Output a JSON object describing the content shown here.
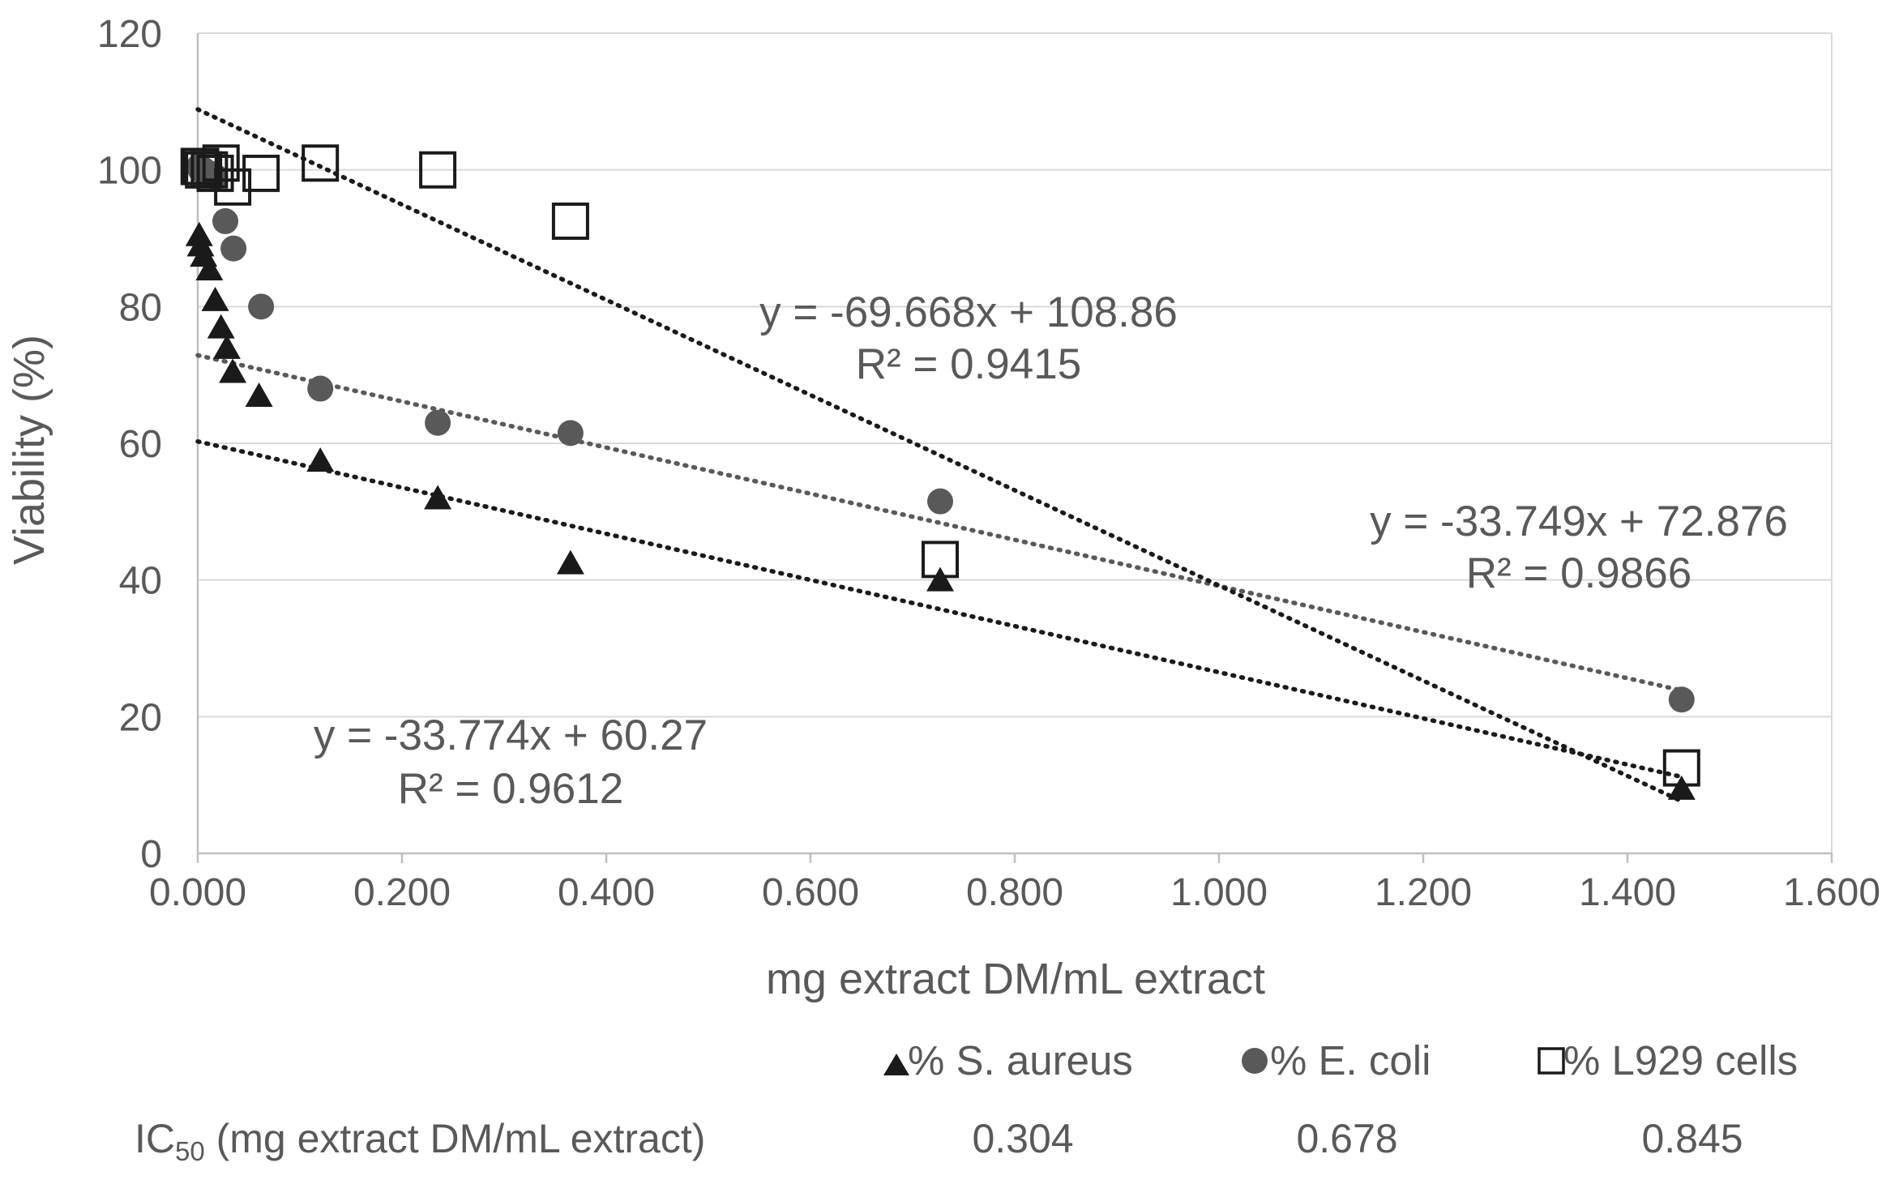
{
  "chart_data": {
    "type": "scatter",
    "title": "",
    "xlabel": "mg extract DM/mL extract",
    "ylabel": "Viability (%)",
    "xlim": [
      0,
      1.6
    ],
    "ylim": [
      0,
      120
    ],
    "x_ticks": [
      "0.000",
      "0.200",
      "0.400",
      "0.600",
      "0.800",
      "1.000",
      "1.200",
      "1.400",
      "1.600"
    ],
    "y_ticks": [
      "0",
      "20",
      "40",
      "60",
      "80",
      "100",
      "120"
    ],
    "grid": "horizontal",
    "legend_position": "bottom-right",
    "series": [
      {
        "name": "% S. aureus",
        "marker": "triangle",
        "color": "#1a1a1a",
        "x": [
          0.0014,
          0.0028,
          0.0057,
          0.0114,
          0.0171,
          0.0228,
          0.0285,
          0.0342,
          0.06,
          0.12,
          0.235,
          0.365,
          0.727,
          1.453
        ],
        "y": [
          90.5,
          89,
          87.5,
          85.5,
          81,
          77,
          74,
          70.5,
          67,
          57.5,
          52,
          42.5,
          40,
          9.5
        ],
        "trendline": {
          "slope": -33.774,
          "intercept": 60.27,
          "x_range": [
            0,
            1.453
          ],
          "color": "#1a1a1a"
        },
        "equation": "y = -33.774x + 60.27",
        "r2": "R² = 0.9612"
      },
      {
        "name": "% E. coli",
        "marker": "circle",
        "color": "#595959",
        "x": [
          0.0014,
          0.0028,
          0.0057,
          0.0114,
          0.0171,
          0.027,
          0.035,
          0.062,
          0.12,
          0.235,
          0.365,
          0.727,
          1.453
        ],
        "y": [
          100.5,
          100,
          100,
          99.5,
          99,
          92.5,
          88.5,
          80,
          68,
          63,
          61.5,
          51.5,
          22.5
        ],
        "trendline": {
          "slope": -33.749,
          "intercept": 72.876,
          "x_range": [
            0,
            1.453
          ],
          "color": "#595959"
        },
        "equation": "y = -33.749x + 72.876",
        "r2": "R² = 0.9866"
      },
      {
        "name": "% L929 cells",
        "marker": "square",
        "color": "#1a1a1a",
        "x": [
          0.0014,
          0.0028,
          0.0057,
          0.0114,
          0.0171,
          0.0228,
          0.0342,
          0.062,
          0.12,
          0.235,
          0.365,
          0.727,
          1.453
        ],
        "y": [
          100.5,
          100.5,
          100,
          100,
          99.5,
          101,
          97.5,
          99.5,
          101,
          100,
          92.5,
          43,
          12.5
        ],
        "trendline": {
          "slope": -69.668,
          "intercept": 108.86,
          "x_range": [
            0,
            1.453
          ],
          "color": "#1a1a1a"
        },
        "equation": "y = -69.668x + 108.86",
        "r2": "R² = 0.9415"
      }
    ],
    "ic50": {
      "label_main": "IC",
      "label_sub": "50",
      "label_rest": " (mg extract DM/mL extract)",
      "values": [
        "0.304",
        "0.678",
        "0.845"
      ]
    }
  }
}
